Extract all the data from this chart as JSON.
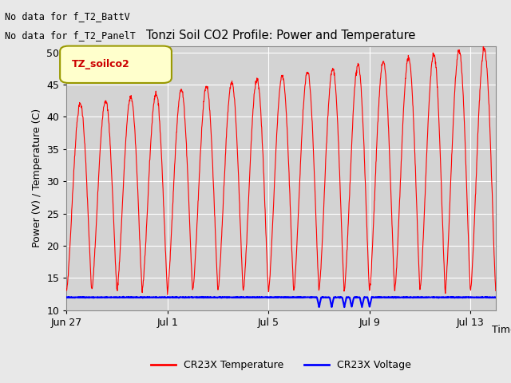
{
  "title": "Tonzi Soil CO2 Profile: Power and Temperature",
  "ylabel": "Power (V) / Temperature (C)",
  "xlabel": "Time",
  "ylim": [
    10,
    51
  ],
  "yticks": [
    10,
    15,
    20,
    25,
    30,
    35,
    40,
    45,
    50
  ],
  "fig_bg_color": "#e8e8e8",
  "plot_bg_color": "#d3d3d3",
  "no_data_text1": "No data for f_T2_BattV",
  "no_data_text2": "No data for f_T2_PanelT",
  "legend_label_text": "TZ_soilco2",
  "legend_entries": [
    "CR23X Temperature",
    "CR23X Voltage"
  ],
  "legend_colors": [
    "#ff0000",
    "#0000ff"
  ],
  "temp_color": "#ff0000",
  "volt_color": "#0000ff",
  "x_tick_labels": [
    "Jun 27",
    "Jul 1",
    "Jul 5",
    "Jul 9",
    "Jul 13"
  ],
  "x_tick_days": [
    0,
    4,
    8,
    12,
    16
  ],
  "total_days": 17
}
